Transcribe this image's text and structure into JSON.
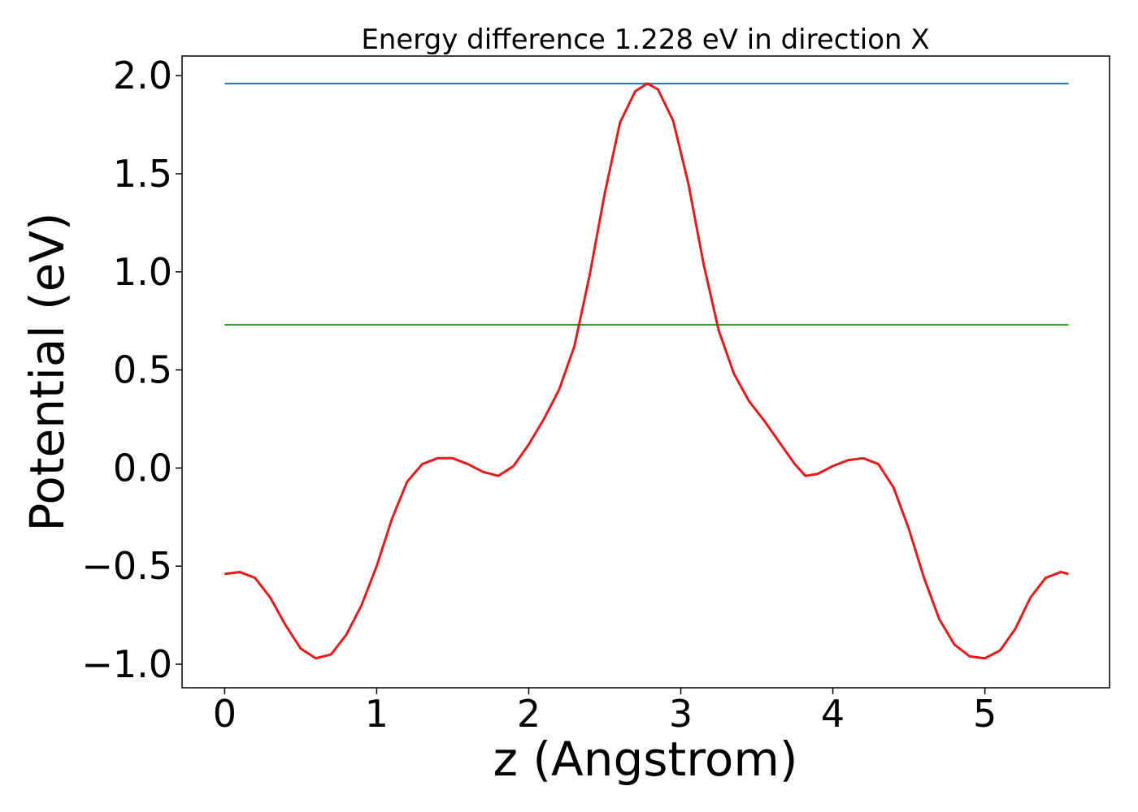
{
  "chart_data": {
    "type": "line",
    "title": "Energy difference 1.228 eV in direction X",
    "xlabel": "z (Angstrom)",
    "ylabel": "Potential (eV)",
    "xlim": [
      -0.28,
      5.82
    ],
    "ylim": [
      -1.12,
      2.1
    ],
    "grid": false,
    "legend": "none",
    "x_ticks": [
      {
        "value": 0,
        "label": "0"
      },
      {
        "value": 1,
        "label": "1"
      },
      {
        "value": 2,
        "label": "2"
      },
      {
        "value": 3,
        "label": "3"
      },
      {
        "value": 4,
        "label": "4"
      },
      {
        "value": 5,
        "label": "5"
      }
    ],
    "y_ticks": [
      {
        "value": -1.0,
        "label": "−1.0"
      },
      {
        "value": -0.5,
        "label": "−0.5"
      },
      {
        "value": 0.0,
        "label": "0.0"
      },
      {
        "value": 0.5,
        "label": "0.5"
      },
      {
        "value": 1.0,
        "label": "1.0"
      },
      {
        "value": 1.5,
        "label": "1.5"
      },
      {
        "value": 2.0,
        "label": "2.0"
      }
    ],
    "hlines": [
      {
        "y": 1.96,
        "x": [
          0,
          5.55
        ],
        "color": "#1f77b4"
      },
      {
        "y": 0.73,
        "x": [
          0,
          5.55
        ],
        "color": "#2ca02c"
      }
    ],
    "series": [
      {
        "color": "#e41a1c",
        "points": [
          [
            0.0,
            -0.54
          ],
          [
            0.1,
            -0.53
          ],
          [
            0.2,
            -0.56
          ],
          [
            0.3,
            -0.66
          ],
          [
            0.4,
            -0.8
          ],
          [
            0.5,
            -0.92
          ],
          [
            0.6,
            -0.97
          ],
          [
            0.7,
            -0.95
          ],
          [
            0.8,
            -0.85
          ],
          [
            0.9,
            -0.7
          ],
          [
            1.0,
            -0.5
          ],
          [
            1.1,
            -0.26
          ],
          [
            1.2,
            -0.07
          ],
          [
            1.3,
            0.02
          ],
          [
            1.4,
            0.05
          ],
          [
            1.5,
            0.05
          ],
          [
            1.6,
            0.02
          ],
          [
            1.7,
            -0.02
          ],
          [
            1.8,
            -0.04
          ],
          [
            1.9,
            0.01
          ],
          [
            2.0,
            0.12
          ],
          [
            2.1,
            0.25
          ],
          [
            2.2,
            0.4
          ],
          [
            2.3,
            0.62
          ],
          [
            2.4,
            0.98
          ],
          [
            2.5,
            1.4
          ],
          [
            2.6,
            1.76
          ],
          [
            2.7,
            1.92
          ],
          [
            2.78,
            1.96
          ],
          [
            2.85,
            1.93
          ],
          [
            2.95,
            1.77
          ],
          [
            3.05,
            1.45
          ],
          [
            3.15,
            1.04
          ],
          [
            3.25,
            0.7
          ],
          [
            3.35,
            0.48
          ],
          [
            3.45,
            0.34
          ],
          [
            3.55,
            0.24
          ],
          [
            3.65,
            0.13
          ],
          [
            3.75,
            0.02
          ],
          [
            3.82,
            -0.04
          ],
          [
            3.9,
            -0.03
          ],
          [
            4.0,
            0.01
          ],
          [
            4.1,
            0.04
          ],
          [
            4.2,
            0.05
          ],
          [
            4.3,
            0.02
          ],
          [
            4.4,
            -0.1
          ],
          [
            4.5,
            -0.31
          ],
          [
            4.6,
            -0.56
          ],
          [
            4.7,
            -0.77
          ],
          [
            4.8,
            -0.9
          ],
          [
            4.9,
            -0.96
          ],
          [
            5.0,
            -0.97
          ],
          [
            5.1,
            -0.93
          ],
          [
            5.2,
            -0.82
          ],
          [
            5.3,
            -0.66
          ],
          [
            5.4,
            -0.56
          ],
          [
            5.5,
            -0.53
          ],
          [
            5.55,
            -0.54
          ]
        ]
      }
    ]
  }
}
